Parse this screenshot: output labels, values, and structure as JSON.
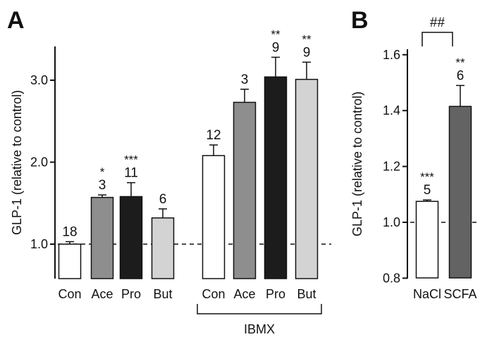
{
  "chart_data": [
    {
      "panel": "A",
      "type": "bar",
      "ylabel": "GLP-1 (relative to control)",
      "ylim": [
        0.6,
        3.4
      ],
      "yticks": [
        "1.0",
        "2.0",
        "3.0"
      ],
      "ytick_values": [
        1.0,
        2.0,
        3.0
      ],
      "reference_line": 1.0,
      "categories": [
        "Con",
        "Ace",
        "Pro",
        "But",
        "Con",
        "Ace",
        "Pro",
        "But"
      ],
      "values": [
        1.0,
        1.57,
        1.58,
        1.32,
        2.08,
        2.73,
        3.04,
        3.01
      ],
      "errors": [
        0.03,
        0.03,
        0.17,
        0.11,
        0.13,
        0.16,
        0.24,
        0.21
      ],
      "n": [
        "18",
        "3",
        "11",
        "6",
        "12",
        "3",
        "9",
        "9"
      ],
      "significance": [
        "",
        "*",
        "***",
        "",
        "",
        "",
        "**",
        "**"
      ],
      "colors": [
        "#ffffff",
        "#8e8e8e",
        "#1c1c1c",
        "#d3d3d3",
        "#ffffff",
        "#8e8e8e",
        "#1c1c1c",
        "#d3d3d3"
      ],
      "group_label": "IBMX",
      "group_members": [
        4,
        5,
        6,
        7
      ]
    },
    {
      "panel": "B",
      "type": "bar",
      "ylabel": "GLP-1 (relative to control)",
      "ylim": [
        0.8,
        1.7
      ],
      "yticks": [
        "0.8",
        "1.0",
        "1.2",
        "1.4",
        "1.6"
      ],
      "ytick_values": [
        0.8,
        1.0,
        1.2,
        1.4,
        1.6
      ],
      "reference_line": 1.0,
      "categories": [
        "NaCl",
        "SCFA"
      ],
      "values": [
        1.075,
        1.415
      ],
      "errors": [
        0.005,
        0.075
      ],
      "n": [
        "5",
        "6"
      ],
      "significance": [
        "***",
        "**"
      ],
      "colors": [
        "#ffffff",
        "#636363"
      ],
      "comparison_label": "##"
    }
  ]
}
